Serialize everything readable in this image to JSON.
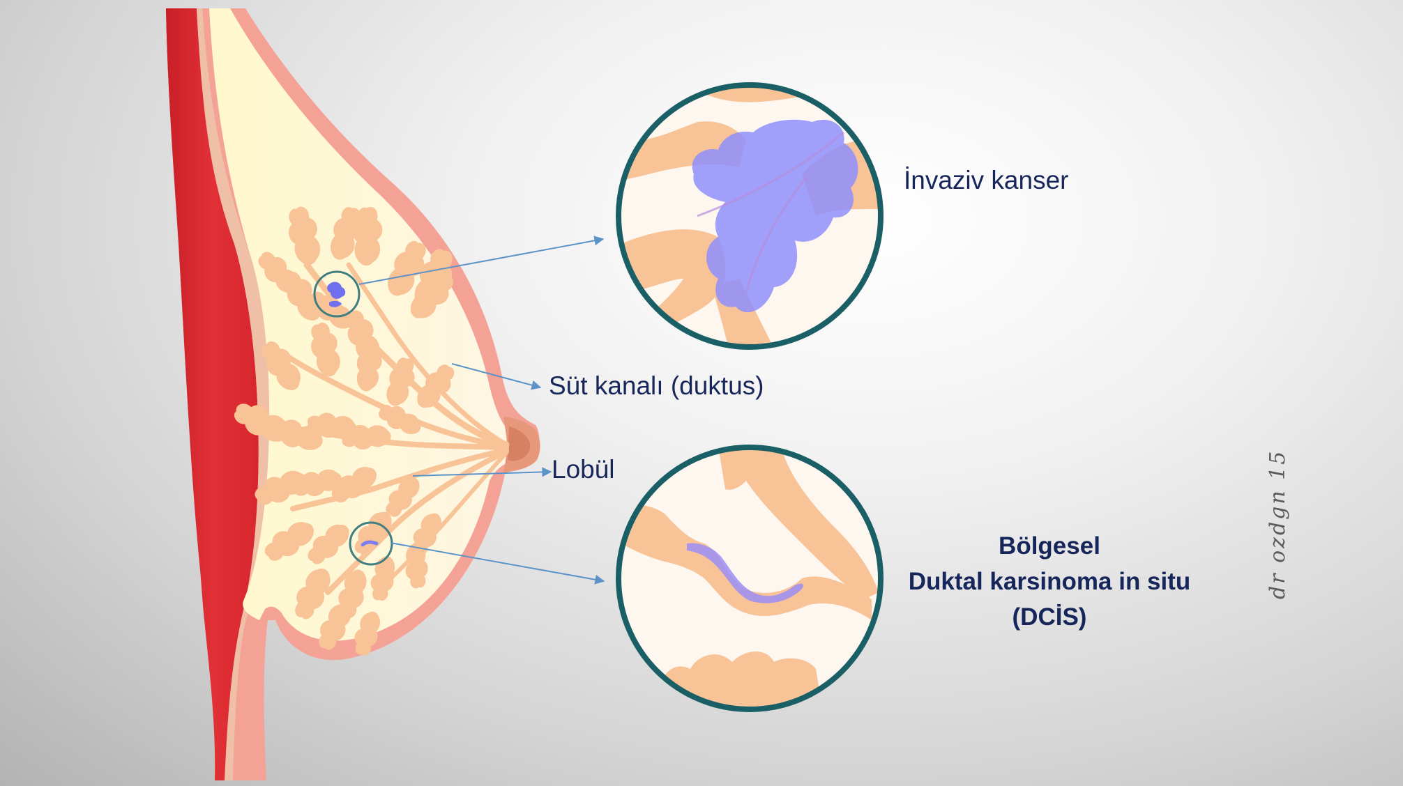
{
  "labels": {
    "invasive": "İnvaziv kanser",
    "duct": "Süt kanalı (duktus)",
    "lobule": "Lobül",
    "dcis_line1": "Bölgesel",
    "dcis_line2": "Duktal karsinoma in situ",
    "dcis_line3": "(DCİS)"
  },
  "signature": "dr ozdgn 15",
  "colors": {
    "text": "#16255a",
    "muscle": "#d92b32",
    "skin": "#f5a296",
    "fat": "#fdf9d8",
    "glandular": "#f8c397",
    "tumor": "#8f8ffb",
    "circle_border": "#1a5e66",
    "arrow": "#5b93c9"
  },
  "icons": {
    "arrow": "arrow-right-icon"
  }
}
